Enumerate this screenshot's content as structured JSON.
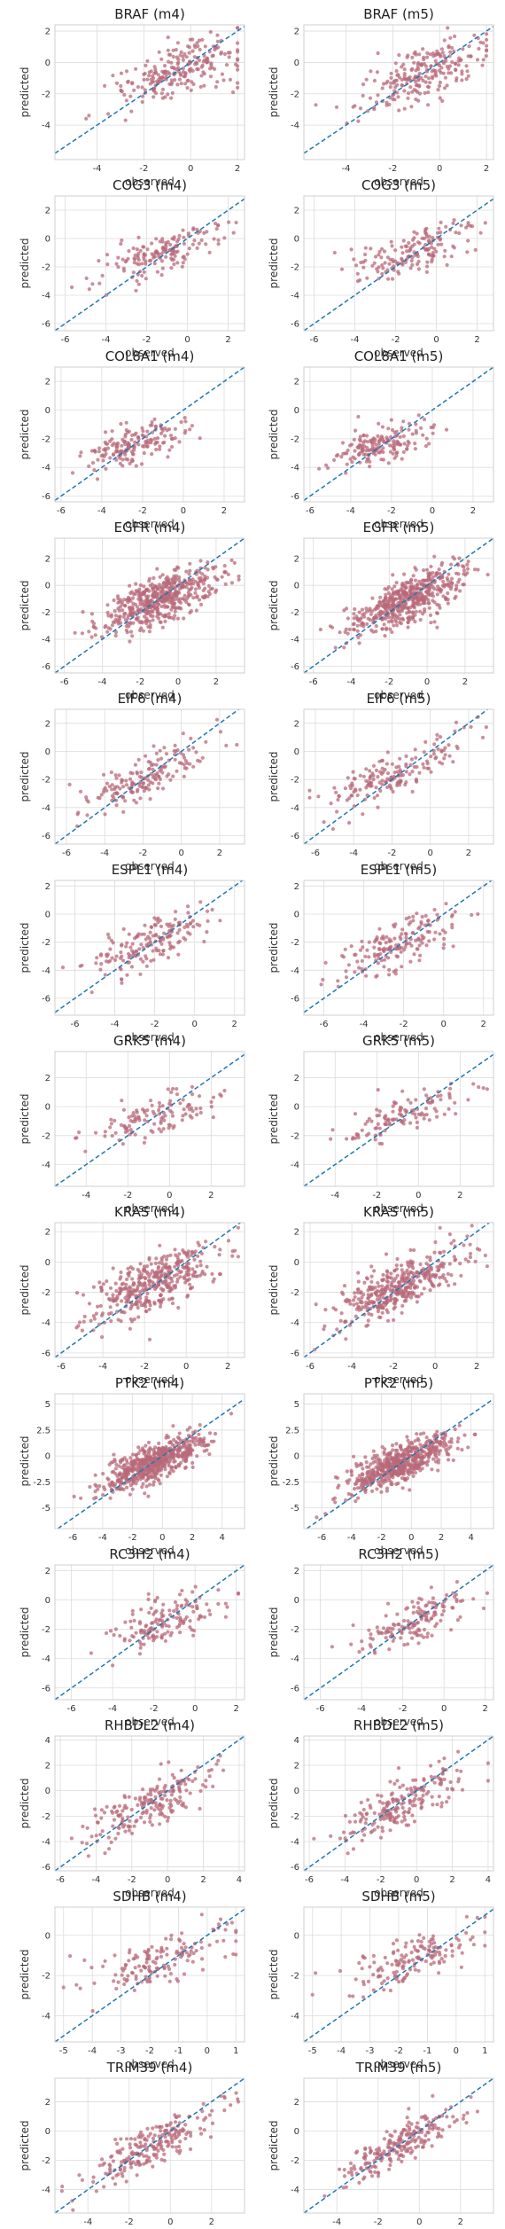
{
  "figure": {
    "xlabel": "observed",
    "ylabel": "predicted"
  },
  "colors": {
    "points": "#b86a7a",
    "diagonal": "#1f77b4",
    "grid": "#dcdcdc",
    "frame": "#cfcfcf",
    "text": "#333333"
  },
  "chart_data": [
    {
      "type": "scatter",
      "title": "BRAF (m4)",
      "xlabel": "observed",
      "ylabel": "predicted",
      "xlim": [
        -5.8,
        2.3
      ],
      "ylim": [
        -6.2,
        2.4
      ],
      "xticks": [
        -4,
        -2,
        0,
        2
      ],
      "yticks": [
        -4,
        -2,
        0,
        2
      ],
      "n": 230,
      "slope": 0.5,
      "intercept": -0.3,
      "noise": 0.9,
      "xmean": -0.6,
      "xsd": 1.3,
      "seed": 1,
      "grid": true
    },
    {
      "type": "scatter",
      "title": "BRAF (m5)",
      "xlabel": "observed",
      "ylabel": "predicted",
      "xlim": [
        -5.8,
        2.3
      ],
      "ylim": [
        -6.2,
        2.4
      ],
      "xticks": [
        -4,
        -2,
        0,
        2
      ],
      "yticks": [
        -4,
        -2,
        0,
        2
      ],
      "n": 230,
      "slope": 0.55,
      "intercept": -0.3,
      "noise": 0.85,
      "xmean": -0.6,
      "xsd": 1.3,
      "seed": 2,
      "grid": true
    },
    {
      "type": "scatter",
      "title": "COG3 (m4)",
      "xlabel": "observed",
      "ylabel": "predicted",
      "xlim": [
        -6.5,
        2.8
      ],
      "ylim": [
        -6.5,
        3.0
      ],
      "xticks": [
        -6,
        -4,
        -2,
        0,
        2
      ],
      "yticks": [
        -6,
        -4,
        -2,
        0,
        2
      ],
      "n": 160,
      "slope": 0.45,
      "intercept": -0.4,
      "noise": 0.8,
      "xmean": -1.2,
      "xsd": 1.5,
      "seed": 3,
      "grid": true
    },
    {
      "type": "scatter",
      "title": "COG3 (m5)",
      "xlabel": "observed",
      "ylabel": "predicted",
      "xlim": [
        -6.5,
        2.8
      ],
      "ylim": [
        -6.5,
        3.0
      ],
      "xticks": [
        -6,
        -4,
        -2,
        0,
        2
      ],
      "yticks": [
        -6,
        -4,
        -2,
        0,
        2
      ],
      "n": 160,
      "slope": 0.5,
      "intercept": -0.35,
      "noise": 0.75,
      "xmean": -1.2,
      "xsd": 1.5,
      "seed": 4,
      "grid": true
    },
    {
      "type": "scatter",
      "title": "COL8A1 (m4)",
      "xlabel": "observed",
      "ylabel": "predicted",
      "xlim": [
        -6.3,
        3.0
      ],
      "ylim": [
        -6.4,
        3.0
      ],
      "xticks": [
        -6,
        -4,
        -2,
        0,
        2
      ],
      "yticks": [
        -6,
        -4,
        -2,
        0,
        2
      ],
      "n": 170,
      "slope": 0.4,
      "intercept": -1.5,
      "noise": 0.7,
      "xmean": -2.5,
      "xsd": 1.2,
      "seed": 5,
      "grid": true
    },
    {
      "type": "scatter",
      "title": "COL8A1 (m5)",
      "xlabel": "observed",
      "ylabel": "predicted",
      "xlim": [
        -6.3,
        3.0
      ],
      "ylim": [
        -6.4,
        3.0
      ],
      "xticks": [
        -6,
        -4,
        -2,
        0,
        2
      ],
      "yticks": [
        -6,
        -4,
        -2,
        0,
        2
      ],
      "n": 170,
      "slope": 0.45,
      "intercept": -1.3,
      "noise": 0.65,
      "xmean": -2.5,
      "xsd": 1.2,
      "seed": 6,
      "grid": true
    },
    {
      "type": "scatter",
      "title": "EGFR (m4)",
      "xlabel": "observed",
      "ylabel": "predicted",
      "xlim": [
        -6.5,
        3.5
      ],
      "ylim": [
        -6.5,
        3.5
      ],
      "xticks": [
        -6,
        -4,
        -2,
        0,
        2
      ],
      "yticks": [
        -6,
        -4,
        -2,
        0,
        2
      ],
      "n": 520,
      "slope": 0.55,
      "intercept": -0.5,
      "noise": 0.9,
      "xmean": -1.0,
      "xsd": 1.5,
      "seed": 7,
      "grid": true
    },
    {
      "type": "scatter",
      "title": "EGFR (m5)",
      "xlabel": "observed",
      "ylabel": "predicted",
      "xlim": [
        -6.5,
        3.5
      ],
      "ylim": [
        -6.5,
        3.5
      ],
      "xticks": [
        -6,
        -4,
        -2,
        0,
        2
      ],
      "yticks": [
        -6,
        -4,
        -2,
        0,
        2
      ],
      "n": 520,
      "slope": 0.6,
      "intercept": -0.45,
      "noise": 0.85,
      "xmean": -1.0,
      "xsd": 1.5,
      "seed": 8,
      "grid": true
    },
    {
      "type": "scatter",
      "title": "EIF6 (m4)",
      "xlabel": "observed",
      "ylabel": "predicted",
      "xlim": [
        -6.6,
        3.3
      ],
      "ylim": [
        -6.6,
        3.0
      ],
      "xticks": [
        -6,
        -4,
        -2,
        0,
        2
      ],
      "yticks": [
        -6,
        -4,
        -2,
        0,
        2
      ],
      "n": 170,
      "slope": 0.6,
      "intercept": -0.6,
      "noise": 0.8,
      "xmean": -1.8,
      "xsd": 1.8,
      "seed": 9,
      "grid": true
    },
    {
      "type": "scatter",
      "title": "EIF6 (m5)",
      "xlabel": "observed",
      "ylabel": "predicted",
      "xlim": [
        -6.6,
        3.3
      ],
      "ylim": [
        -6.6,
        3.0
      ],
      "xticks": [
        -6,
        -4,
        -2,
        0,
        2
      ],
      "yticks": [
        -6,
        -4,
        -2,
        0,
        2
      ],
      "n": 170,
      "slope": 0.65,
      "intercept": -0.5,
      "noise": 0.75,
      "xmean": -1.8,
      "xsd": 1.8,
      "seed": 10,
      "grid": true
    },
    {
      "type": "scatter",
      "title": "ESPL1 (m4)",
      "xlabel": "observed",
      "ylabel": "predicted",
      "xlim": [
        -7.0,
        2.5
      ],
      "ylim": [
        -7.2,
        2.4
      ],
      "xticks": [
        -6,
        -4,
        -2,
        0,
        2
      ],
      "yticks": [
        -6,
        -4,
        -2,
        0,
        2
      ],
      "n": 170,
      "slope": 0.55,
      "intercept": -0.8,
      "noise": 0.85,
      "xmean": -2.3,
      "xsd": 1.5,
      "seed": 11,
      "grid": true
    },
    {
      "type": "scatter",
      "title": "ESPL1 (m5)",
      "xlabel": "observed",
      "ylabel": "predicted",
      "xlim": [
        -7.0,
        2.5
      ],
      "ylim": [
        -7.2,
        2.4
      ],
      "xticks": [
        -6,
        -4,
        -2,
        0,
        2
      ],
      "yticks": [
        -6,
        -4,
        -2,
        0,
        2
      ],
      "n": 170,
      "slope": 0.6,
      "intercept": -0.7,
      "noise": 0.8,
      "xmean": -2.3,
      "xsd": 1.5,
      "seed": 12,
      "grid": true
    },
    {
      "type": "scatter",
      "title": "GRK5 (m4)",
      "xlabel": "observed",
      "ylabel": "predicted",
      "xlim": [
        -5.5,
        3.6
      ],
      "ylim": [
        -5.5,
        3.8
      ],
      "xticks": [
        -4,
        -2,
        0,
        2
      ],
      "yticks": [
        -4,
        -2,
        0,
        2
      ],
      "n": 120,
      "slope": 0.45,
      "intercept": -0.3,
      "noise": 0.7,
      "xmean": -0.7,
      "xsd": 1.5,
      "seed": 13,
      "grid": true
    },
    {
      "type": "scatter",
      "title": "GRK5 (m5)",
      "xlabel": "observed",
      "ylabel": "predicted",
      "xlim": [
        -5.5,
        3.6
      ],
      "ylim": [
        -5.5,
        3.8
      ],
      "xticks": [
        -4,
        -2,
        0,
        2
      ],
      "yticks": [
        -4,
        -2,
        0,
        2
      ],
      "n": 120,
      "slope": 0.5,
      "intercept": -0.25,
      "noise": 0.65,
      "xmean": -0.7,
      "xsd": 1.5,
      "seed": 14,
      "grid": true
    },
    {
      "type": "scatter",
      "title": "KRAS (m4)",
      "xlabel": "observed",
      "ylabel": "predicted",
      "xlim": [
        -6.3,
        2.8
      ],
      "ylim": [
        -6.3,
        2.6
      ],
      "xticks": [
        -6,
        -4,
        -2,
        0,
        2
      ],
      "yticks": [
        -6,
        -4,
        -2,
        0,
        2
      ],
      "n": 400,
      "slope": 0.55,
      "intercept": -0.6,
      "noise": 0.85,
      "xmean": -1.6,
      "xsd": 1.5,
      "seed": 15,
      "grid": true
    },
    {
      "type": "scatter",
      "title": "KRAS (m5)",
      "xlabel": "observed",
      "ylabel": "predicted",
      "xlim": [
        -6.3,
        2.8
      ],
      "ylim": [
        -6.3,
        2.6
      ],
      "xticks": [
        -6,
        -4,
        -2,
        0,
        2
      ],
      "yticks": [
        -6,
        -4,
        -2,
        0,
        2
      ],
      "n": 400,
      "slope": 0.6,
      "intercept": -0.55,
      "noise": 0.8,
      "xmean": -1.6,
      "xsd": 1.5,
      "seed": 16,
      "grid": true
    },
    {
      "type": "scatter",
      "title": "PTK2 (m4)",
      "xlabel": "observed",
      "ylabel": "predicted",
      "xlim": [
        -7.2,
        5.5
      ],
      "ylim": [
        -7.0,
        6.0
      ],
      "xticks": [
        -6,
        -4,
        -2,
        0,
        2,
        4
      ],
      "yticks": [
        -5.0,
        -2.5,
        0.0,
        2.5,
        5.0
      ],
      "n": 600,
      "slope": 0.55,
      "intercept": -0.3,
      "noise": 0.9,
      "xmean": -0.6,
      "xsd": 1.7,
      "seed": 17,
      "grid": true
    },
    {
      "type": "scatter",
      "title": "PTK2 (m5)",
      "xlabel": "observed",
      "ylabel": "predicted",
      "xlim": [
        -7.2,
        5.5
      ],
      "ylim": [
        -7.0,
        6.0
      ],
      "xticks": [
        -6,
        -4,
        -2,
        0,
        2,
        4
      ],
      "yticks": [
        -5.0,
        -2.5,
        0.0,
        2.5,
        5.0
      ],
      "n": 600,
      "slope": 0.6,
      "intercept": -0.25,
      "noise": 0.85,
      "xmean": -0.6,
      "xsd": 1.7,
      "seed": 18,
      "grid": true
    },
    {
      "type": "scatter",
      "title": "RC3H2 (m4)",
      "xlabel": "observed",
      "ylabel": "predicted",
      "xlim": [
        -6.8,
        2.4
      ],
      "ylim": [
        -6.8,
        2.4
      ],
      "xticks": [
        -6,
        -4,
        -2,
        0,
        2
      ],
      "yticks": [
        -6,
        -4,
        -2,
        0,
        2
      ],
      "n": 150,
      "slope": 0.5,
      "intercept": -0.8,
      "noise": 0.8,
      "xmean": -1.5,
      "xsd": 1.4,
      "seed": 19,
      "grid": true
    },
    {
      "type": "scatter",
      "title": "RC3H2 (m5)",
      "xlabel": "observed",
      "ylabel": "predicted",
      "xlim": [
        -6.8,
        2.4
      ],
      "ylim": [
        -6.8,
        2.4
      ],
      "xticks": [
        -6,
        -4,
        -2,
        0,
        2
      ],
      "yticks": [
        -6,
        -4,
        -2,
        0,
        2
      ],
      "n": 150,
      "slope": 0.55,
      "intercept": -0.7,
      "noise": 0.75,
      "xmean": -1.5,
      "xsd": 1.4,
      "seed": 20,
      "grid": true
    },
    {
      "type": "scatter",
      "title": "RHBDL2 (m4)",
      "xlabel": "observed",
      "ylabel": "predicted",
      "xlim": [
        -6.3,
        4.3
      ],
      "ylim": [
        -6.3,
        4.3
      ],
      "xticks": [
        -6,
        -4,
        -2,
        0,
        2,
        4
      ],
      "yticks": [
        -6,
        -4,
        -2,
        0,
        2,
        4
      ],
      "n": 200,
      "slope": 0.6,
      "intercept": -0.5,
      "noise": 0.9,
      "xmean": -0.8,
      "xsd": 1.8,
      "seed": 21,
      "grid": true
    },
    {
      "type": "scatter",
      "title": "RHBDL2 (m5)",
      "xlabel": "observed",
      "ylabel": "predicted",
      "xlim": [
        -6.3,
        4.3
      ],
      "ylim": [
        -6.3,
        4.3
      ],
      "xticks": [
        -6,
        -4,
        -2,
        0,
        2,
        4
      ],
      "yticks": [
        -6,
        -4,
        -2,
        0,
        2,
        4
      ],
      "n": 200,
      "slope": 0.65,
      "intercept": -0.45,
      "noise": 0.85,
      "xmean": -0.8,
      "xsd": 1.8,
      "seed": 22,
      "grid": true
    },
    {
      "type": "scatter",
      "title": "SDHB (m4)",
      "xlabel": "observed",
      "ylabel": "predicted",
      "xlim": [
        -5.3,
        1.3
      ],
      "ylim": [
        -5.3,
        1.4
      ],
      "xticks": [
        -5,
        -4,
        -3,
        -2,
        -1,
        0,
        1
      ],
      "yticks": [
        -4,
        -2,
        0
      ],
      "n": 150,
      "slope": 0.45,
      "intercept": -0.5,
      "noise": 0.6,
      "xmean": -1.6,
      "xsd": 1.2,
      "seed": 23,
      "grid": true
    },
    {
      "type": "scatter",
      "title": "SDHB (m5)",
      "xlabel": "observed",
      "ylabel": "predicted",
      "xlim": [
        -5.3,
        1.3
      ],
      "ylim": [
        -5.3,
        1.4
      ],
      "xticks": [
        -5,
        -4,
        -3,
        -2,
        -1,
        0,
        1
      ],
      "yticks": [
        -4,
        -2,
        0
      ],
      "n": 150,
      "slope": 0.5,
      "intercept": -0.45,
      "noise": 0.55,
      "xmean": -1.6,
      "xsd": 1.2,
      "seed": 24,
      "grid": true
    },
    {
      "type": "scatter",
      "title": "TRIM39 (m4)",
      "xlabel": "observed",
      "ylabel": "predicted",
      "xlim": [
        -5.6,
        3.6
      ],
      "ylim": [
        -5.6,
        3.6
      ],
      "xticks": [
        -4,
        -2,
        0,
        2
      ],
      "yticks": [
        -4,
        -2,
        0,
        2
      ],
      "n": 220,
      "slope": 0.7,
      "intercept": -0.3,
      "noise": 0.7,
      "xmean": -0.9,
      "xsd": 1.5,
      "seed": 25,
      "grid": true
    },
    {
      "type": "scatter",
      "title": "TRIM39 (m5)",
      "xlabel": "observed",
      "ylabel": "predicted",
      "xlim": [
        -5.6,
        3.6
      ],
      "ylim": [
        -5.6,
        3.6
      ],
      "xticks": [
        -4,
        -2,
        0,
        2
      ],
      "yticks": [
        -4,
        -2,
        0,
        2
      ],
      "n": 220,
      "slope": 0.75,
      "intercept": -0.25,
      "noise": 0.65,
      "xmean": -0.9,
      "xsd": 1.5,
      "seed": 26,
      "grid": true
    }
  ]
}
